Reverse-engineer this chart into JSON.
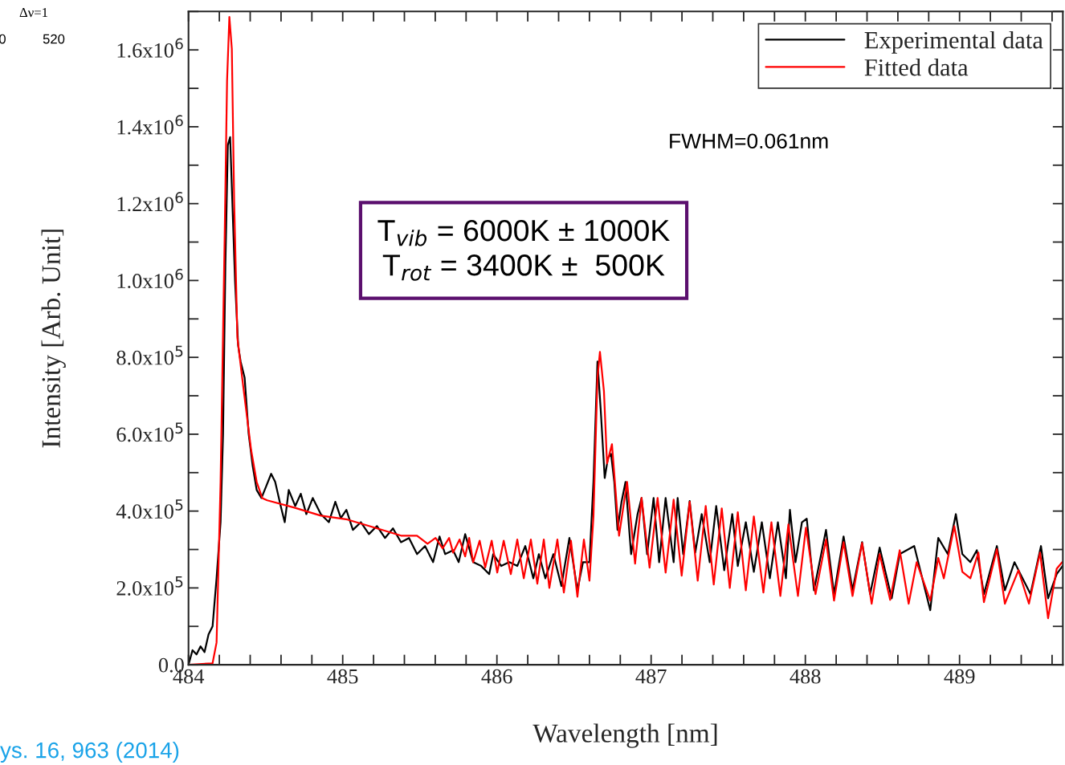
{
  "chart_data": {
    "type": "line",
    "xlabel": "Wavelength [nm]",
    "ylabel": "Intensity [Arb. Unit]",
    "xlim": [
      484,
      489.67
    ],
    "ylim": [
      0,
      1700000
    ],
    "xticks": [
      484,
      {
        "value": 484.2,
        "label": null
      },
      {
        "value": 484.4,
        "label": null
      },
      {
        "value": 484.6,
        "label": null
      },
      {
        "value": 484.8,
        "label": null
      },
      485,
      {
        "value": 485.2,
        "label": null
      },
      {
        "value": 485.4,
        "label": null
      },
      {
        "value": 485.6,
        "label": null
      },
      {
        "value": 485.8,
        "label": null
      },
      486,
      {
        "value": 486.2,
        "label": null
      },
      {
        "value": 486.4,
        "label": null
      },
      {
        "value": 486.6,
        "label": null
      },
      {
        "value": 486.8,
        "label": null
      },
      487,
      {
        "value": 487.2,
        "label": null
      },
      {
        "value": 487.4,
        "label": null
      },
      {
        "value": 487.6,
        "label": null
      },
      {
        "value": 487.8,
        "label": null
      },
      488,
      {
        "value": 488.2,
        "label": null
      },
      {
        "value": 488.4,
        "label": null
      },
      {
        "value": 488.6,
        "label": null
      },
      {
        "value": 488.8,
        "label": null
      },
      489,
      {
        "value": 489.2,
        "label": null
      },
      {
        "value": 489.4,
        "label": null
      },
      {
        "value": 489.6,
        "label": null
      }
    ],
    "yticks": [
      {
        "value": 0,
        "label": "0.0"
      },
      {
        "value": 100000,
        "label": null
      },
      {
        "value": 200000,
        "label": "2.0x10$^{5}$"
      },
      {
        "value": 300000,
        "label": null
      },
      {
        "value": 400000,
        "label": "4.0x10$^{5}$"
      },
      {
        "value": 500000,
        "label": null
      },
      {
        "value": 600000,
        "label": "6.0x10$^{5}$"
      },
      {
        "value": 700000,
        "label": null
      },
      {
        "value": 800000,
        "label": "8.0x10$^{5}$"
      },
      {
        "value": 900000,
        "label": null
      },
      {
        "value": 1000000,
        "label": "1.0x10$^{6}$"
      },
      {
        "value": 1100000,
        "label": null
      },
      {
        "value": 1200000,
        "label": "1.2x10$^{6}$"
      },
      {
        "value": 1300000,
        "label": null
      },
      {
        "value": 1400000,
        "label": "1.4x10$^{6}$"
      },
      {
        "value": 1500000,
        "label": null
      },
      {
        "value": 1600000,
        "label": "1.6x10$^{6}$"
      },
      {
        "value": 1700000,
        "label": null
      }
    ],
    "grid": false,
    "legend": "top right",
    "marker": "none",
    "line_style": "solid",
    "annotations": [
      "FWHM=0.061nm",
      "T$_{vib}$ = 6000K ± 1000K\nT$_{rot}$ = 3400K ±  500K",
      "ys. 16, 963 (2014)",
      "Δν=1",
      "0",
      "520"
    ],
    "series": [
      {
        "name": "Experimental data",
        "color": "#000000",
        "x": [
          484.0,
          484.026,
          484.052,
          484.078,
          484.104,
          484.13,
          484.156,
          484.182,
          484.208,
          484.224,
          484.239,
          484.255,
          484.27,
          484.286,
          484.302,
          484.322,
          484.338,
          484.364,
          484.39,
          484.416,
          484.442,
          484.473,
          484.504,
          484.536,
          484.562,
          484.598,
          484.624,
          484.65,
          484.692,
          484.728,
          484.764,
          484.806,
          484.858,
          484.91,
          484.952,
          484.988,
          485.024,
          485.066,
          485.118,
          485.17,
          485.222,
          485.274,
          485.326,
          485.378,
          485.43,
          485.482,
          485.534,
          485.586,
          485.628,
          485.664,
          485.716,
          485.752,
          485.794,
          485.846,
          485.898,
          485.95,
          485.976,
          486.028,
          486.08,
          486.132,
          486.184,
          486.236,
          486.272,
          486.314,
          486.366,
          486.418,
          486.47,
          486.522,
          486.558,
          486.6,
          486.626,
          486.652,
          486.673,
          486.699,
          486.72,
          486.74,
          486.761,
          486.782,
          486.808,
          486.834,
          486.87,
          486.912,
          486.938,
          486.974,
          487.016,
          487.052,
          487.094,
          487.146,
          487.172,
          487.208,
          487.25,
          487.286,
          487.328,
          487.38,
          487.422,
          487.474,
          487.526,
          487.562,
          487.614,
          487.666,
          487.718,
          487.77,
          487.822,
          487.874,
          487.9,
          487.936,
          487.978,
          488.009,
          488.056,
          488.134,
          488.186,
          488.248,
          488.306,
          488.368,
          488.42,
          488.482,
          488.56,
          488.612,
          488.706,
          488.81,
          488.862,
          488.924,
          488.976,
          489.018,
          489.07,
          489.112,
          489.158,
          489.242,
          489.294,
          489.356,
          489.46,
          489.528,
          489.574,
          489.63,
          489.668
        ],
        "values": [
          0,
          38000,
          27000,
          48000,
          33000,
          79000,
          100000,
          225000,
          371000,
          601000,
          1039000,
          1352000,
          1373000,
          1185000,
          998000,
          831000,
          789000,
          747000,
          601000,
          518000,
          455000,
          434000,
          465000,
          497000,
          476000,
          413000,
          371000,
          455000,
          413000,
          445000,
          392000,
          434000,
          392000,
          371000,
          424000,
          382000,
          403000,
          351000,
          371000,
          340000,
          361000,
          330000,
          355000,
          319000,
          330000,
          288000,
          309000,
          267000,
          334000,
          288000,
          298000,
          267000,
          340000,
          267000,
          257000,
          236000,
          288000,
          257000,
          267000,
          257000,
          309000,
          225000,
          288000,
          225000,
          288000,
          205000,
          330000,
          194000,
          267000,
          267000,
          476000,
          789000,
          664000,
          486000,
          538000,
          549000,
          476000,
          351000,
          424000,
          476000,
          288000,
          392000,
          434000,
          288000,
          434000,
          267000,
          434000,
          267000,
          434000,
          288000,
          426000,
          292000,
          392000,
          267000,
          413000,
          246000,
          392000,
          257000,
          371000,
          242000,
          371000,
          225000,
          371000,
          225000,
          403000,
          267000,
          371000,
          380000,
          194000,
          351000,
          184000,
          334000,
          194000,
          319000,
          184000,
          305000,
          173000,
          288000,
          309000,
          142000,
          330000,
          288000,
          392000,
          288000,
          267000,
          298000,
          184000,
          309000,
          194000,
          267000,
          184000,
          309000,
          173000,
          236000,
          257000
        ]
      },
      {
        "name": "Fitted data",
        "color": "#ff0000",
        "x": [
          484.0,
          484.156,
          484.182,
          484.208,
          484.234,
          484.25,
          484.265,
          484.281,
          484.296,
          484.317,
          484.348,
          484.406,
          484.442,
          484.478,
          484.51,
          484.686,
          484.858,
          485.03,
          485.206,
          485.378,
          485.482,
          485.55,
          485.602,
          485.648,
          485.69,
          485.716,
          485.758,
          485.794,
          485.82,
          485.846,
          485.888,
          485.924,
          485.966,
          486.002,
          486.044,
          486.09,
          486.132,
          486.174,
          486.22,
          486.262,
          486.304,
          486.34,
          486.392,
          486.434,
          486.48,
          486.522,
          486.564,
          486.6,
          486.626,
          486.652,
          486.668,
          486.694,
          486.714,
          486.746,
          486.792,
          486.844,
          486.896,
          486.938,
          486.99,
          487.042,
          487.094,
          487.146,
          487.198,
          487.25,
          487.302,
          487.354,
          487.406,
          487.458,
          487.51,
          487.562,
          487.614,
          487.666,
          487.728,
          487.78,
          487.838,
          487.89,
          487.952,
          488.004,
          488.066,
          488.134,
          488.186,
          488.248,
          488.306,
          488.368,
          488.43,
          488.482,
          488.55,
          488.612,
          488.67,
          488.722,
          488.81,
          488.862,
          488.898,
          488.966,
          489.018,
          489.07,
          489.122,
          489.158,
          489.242,
          489.294,
          489.382,
          489.45,
          489.522,
          489.574,
          489.63,
          489.666
        ],
        "values": [
          0,
          4000,
          58000,
          476000,
          1102000,
          1519000,
          1686000,
          1603000,
          1206000,
          851000,
          747000,
          559000,
          476000,
          434000,
          428000,
          409000,
          388000,
          378000,
          357000,
          336000,
          336000,
          315000,
          330000,
          303000,
          330000,
          292000,
          326000,
          282000,
          330000,
          267000,
          323000,
          253000,
          323000,
          240000,
          323000,
          236000,
          326000,
          225000,
          326000,
          211000,
          326000,
          200000,
          326000,
          188000,
          323000,
          177000,
          326000,
          219000,
          386000,
          747000,
          814000,
          712000,
          524000,
          574000,
          336000,
          476000,
          263000,
          434000,
          253000,
          434000,
          240000,
          430000,
          232000,
          424000,
          219000,
          413000,
          209000,
          407000,
          200000,
          397000,
          194000,
          386000,
          188000,
          371000,
          179000,
          365000,
          179000,
          357000,
          184000,
          326000,
          167000,
          319000,
          179000,
          317000,
          159000,
          288000,
          169000,
          298000,
          159000,
          267000,
          167000,
          278000,
          225000,
          361000,
          242000,
          225000,
          292000,
          163000,
          301000,
          159000,
          246000,
          159000,
          292000,
          121000,
          250000,
          267000
        ]
      }
    ]
  }
}
